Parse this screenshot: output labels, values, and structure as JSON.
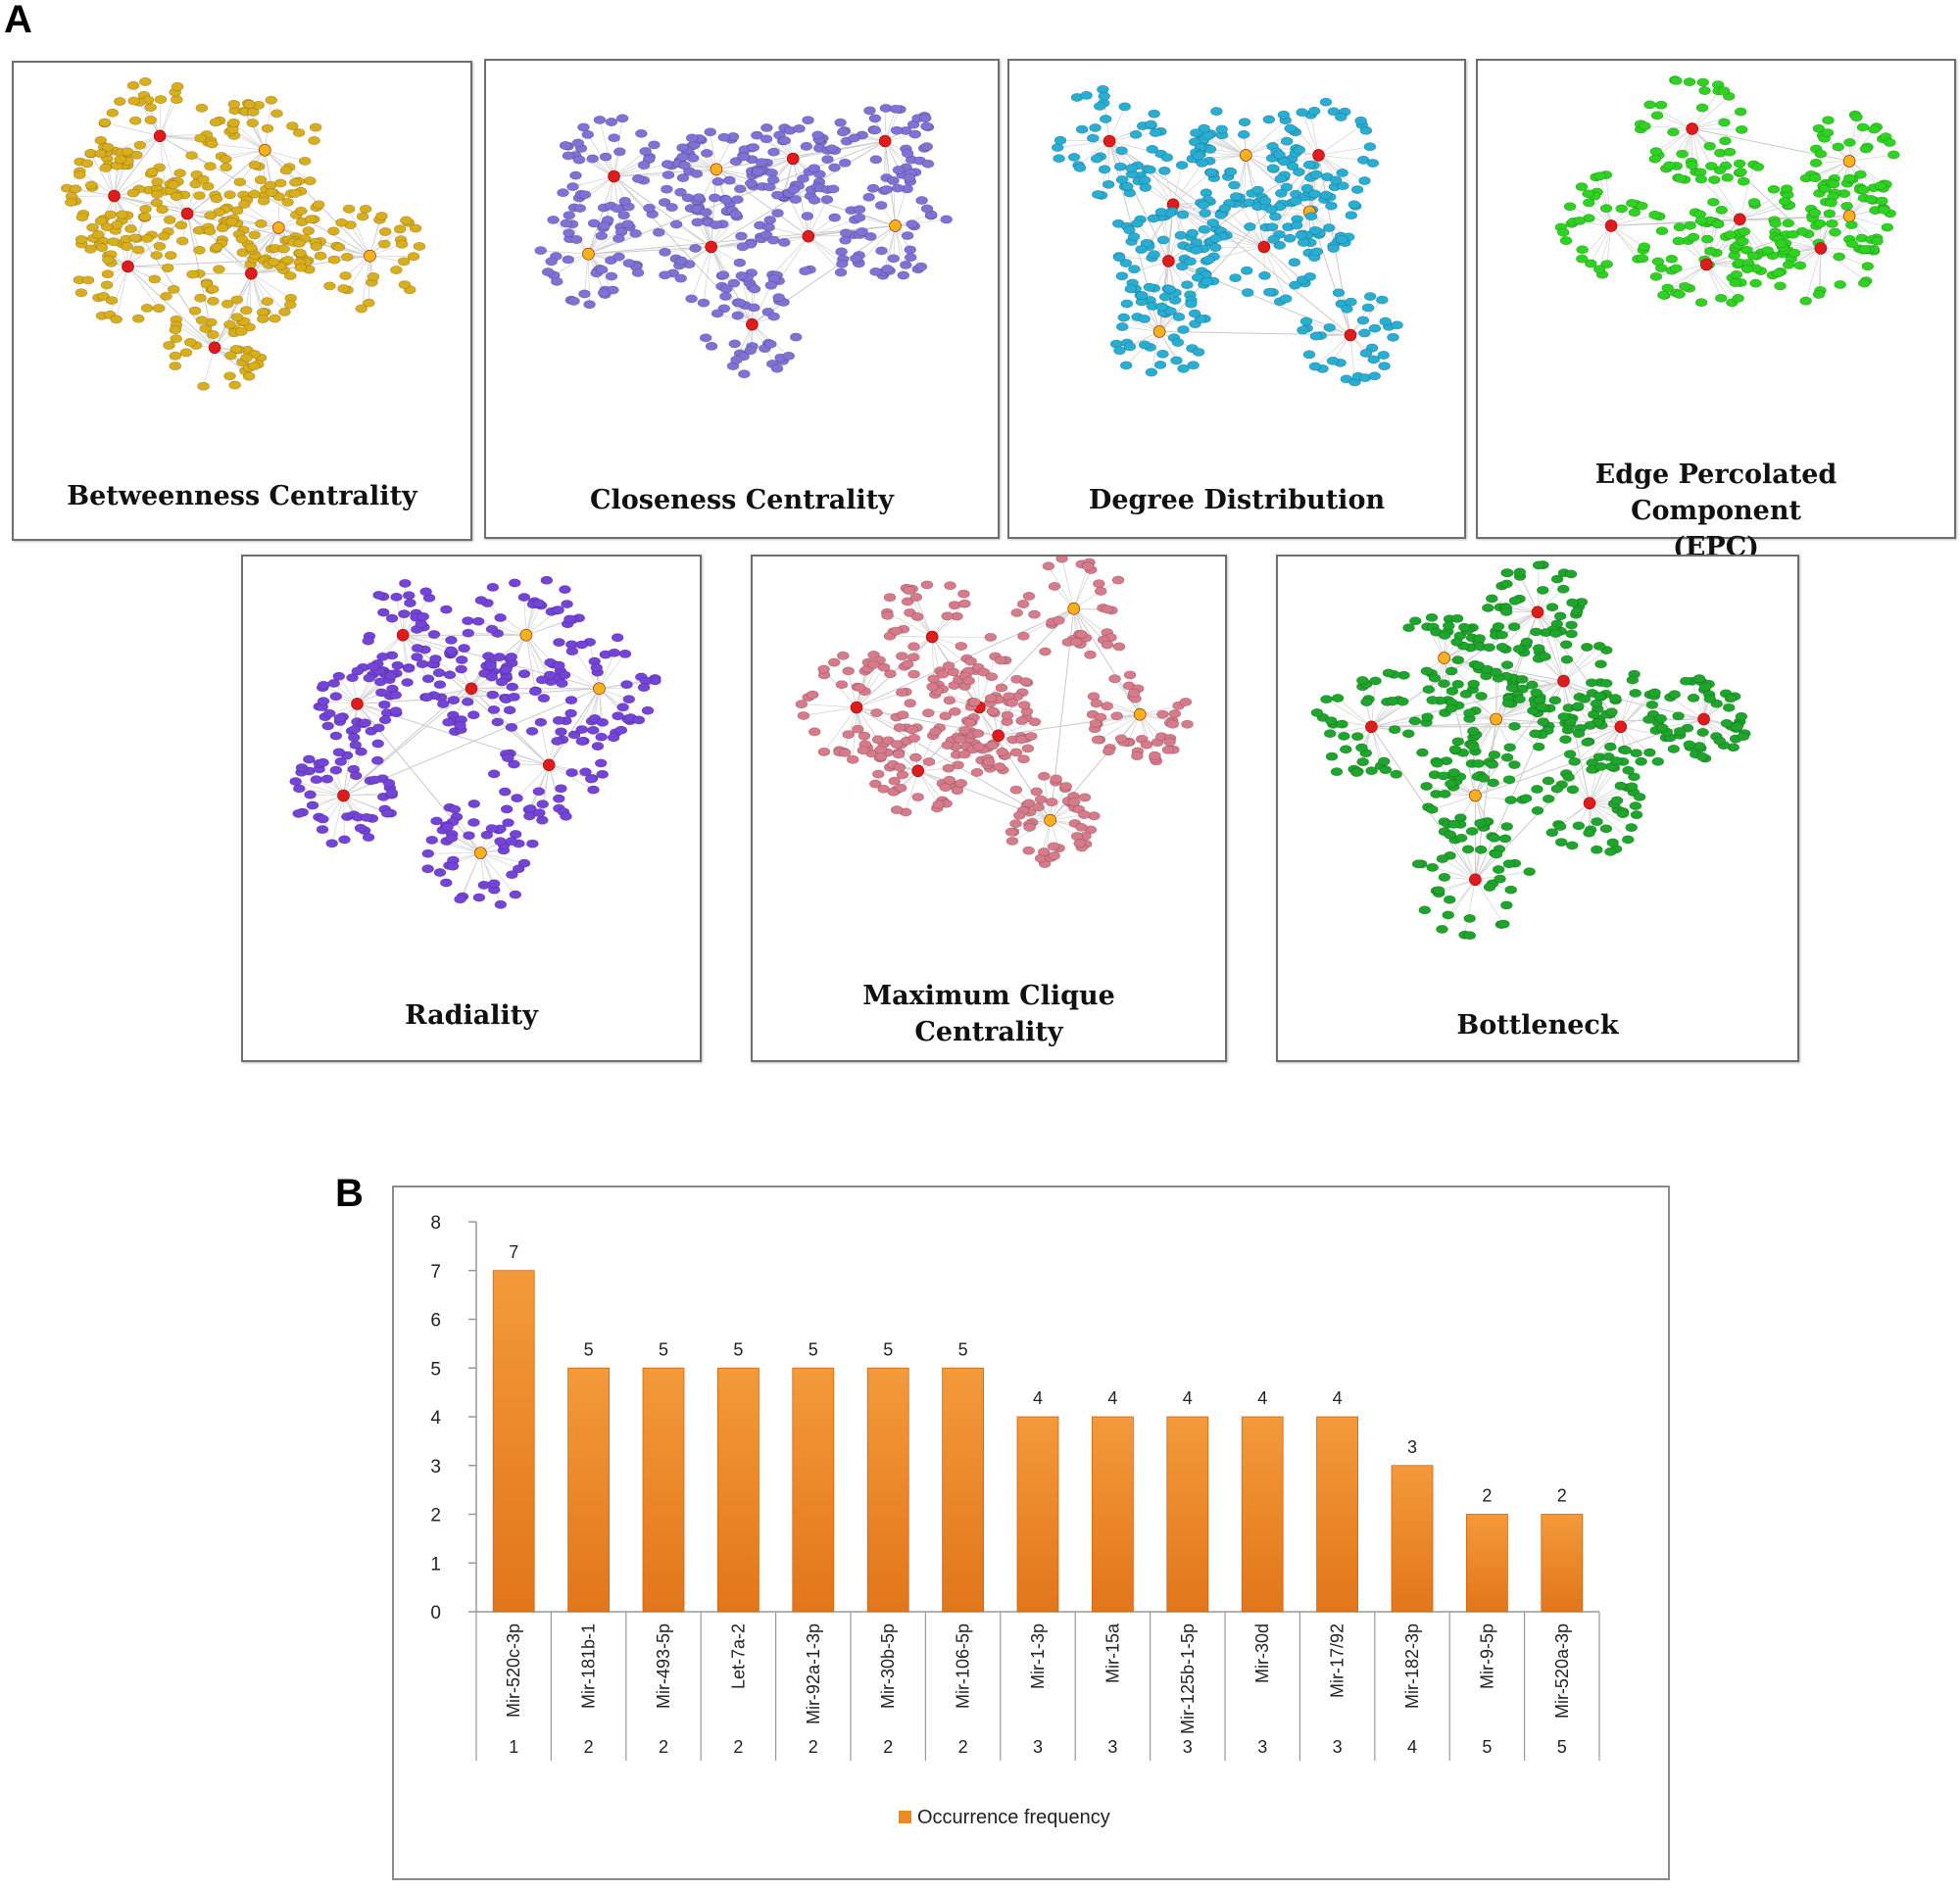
{
  "panel_a": {
    "letter": "A",
    "networks": [
      {
        "title": "Betweenness Centrality",
        "node_color": "#d9ae1c"
      },
      {
        "title": "Closeness Centrality",
        "node_color": "#7f72d6"
      },
      {
        "title": "Degree Distribution",
        "node_color": "#29aed3"
      },
      {
        "title": "Edge Percolated Component (EPC)",
        "node_color": "#2ed321"
      },
      {
        "title": "Radiality",
        "node_color": "#7443d8"
      },
      {
        "title": "Maximum Clique Centrality",
        "node_color": "#d77a8a"
      },
      {
        "title": "Bottleneck",
        "node_color": "#1ea52c"
      }
    ]
  },
  "panel_b": {
    "letter": "B"
  },
  "chart_data": {
    "type": "bar",
    "categories": [
      "Mir-520c-3p",
      "Mir-181b-1",
      "Mir-493-5p",
      "Let-7a-2",
      "Mir-92a-1-3p",
      "Mir-30b-5p",
      "Mir-106-5p",
      "Mir-1-3p",
      "Mir-15a",
      "Mir-125b-1-5p",
      "Mir-30d",
      "Mir-17/92",
      "Mir-182-3p",
      "Mir-9-5p",
      "Mir-520a-3p"
    ],
    "ranks": [
      "1",
      "2",
      "2",
      "2",
      "2",
      "2",
      "2",
      "3",
      "3",
      "3",
      "3",
      "3",
      "4",
      "5",
      "5"
    ],
    "series": [
      {
        "name": "Occurrence frequency",
        "values": [
          7,
          5,
          5,
          5,
          5,
          5,
          5,
          4,
          4,
          4,
          4,
          4,
          3,
          2,
          2
        ]
      }
    ],
    "ylim": [
      0,
      8
    ],
    "yticks": [
      0,
      1,
      2,
      3,
      4,
      5,
      6,
      7,
      8
    ],
    "bar_color": "#ee8a22",
    "data_labels": true,
    "grid": false,
    "legend_position": "bottom"
  }
}
